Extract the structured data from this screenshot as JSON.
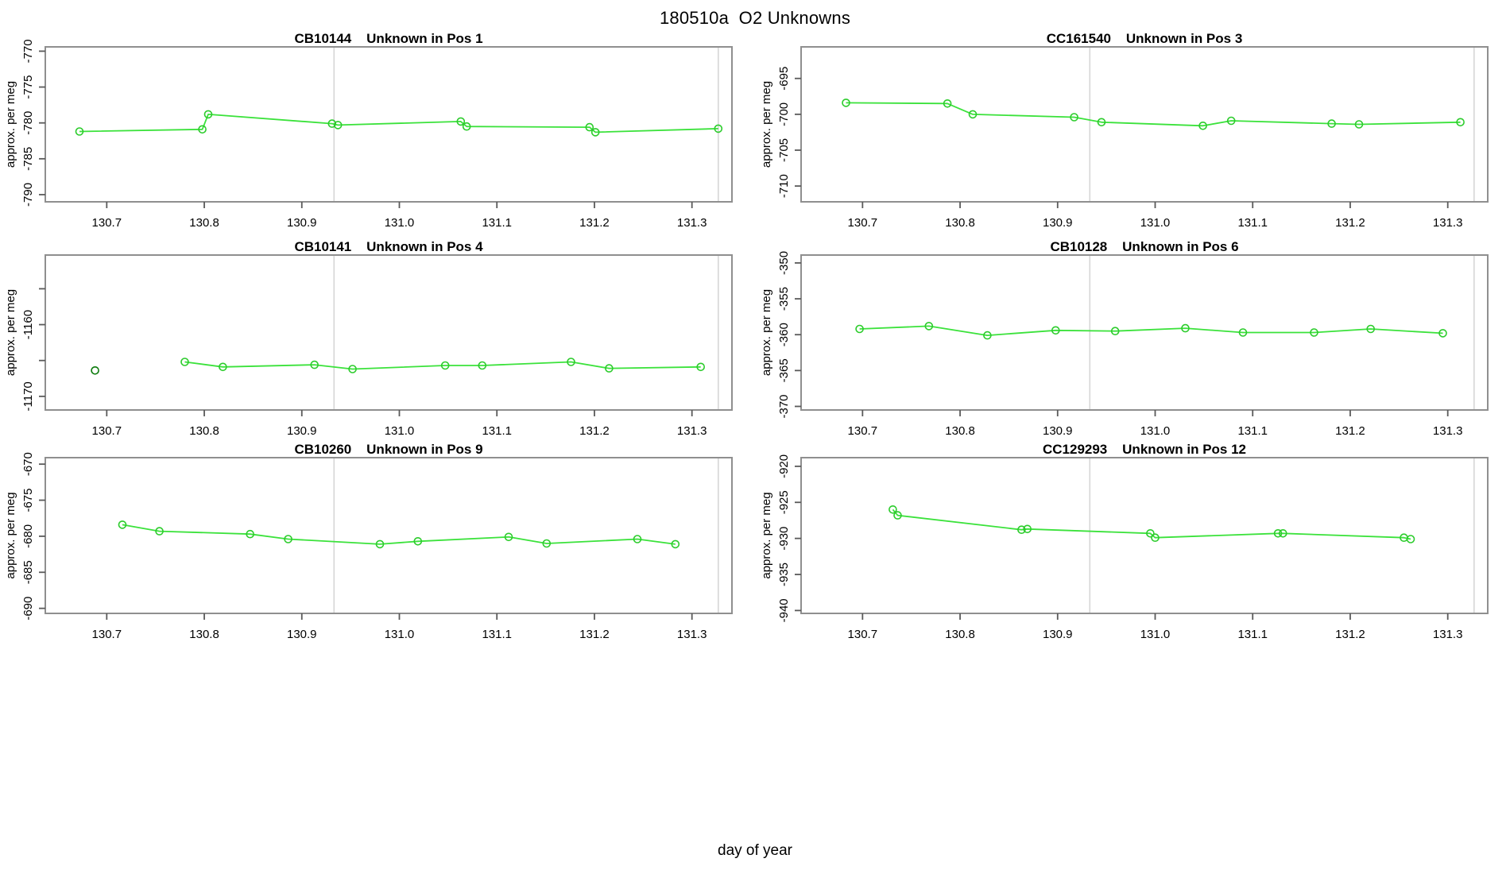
{
  "figure": {
    "title": "180510a  O2 Unknowns",
    "xlabel": "day of year",
    "ylabel": "approx. per meg"
  },
  "style": {
    "series_color": "#3be23b",
    "marker_color": "#2ccc2c",
    "dark_marker_color": "#0b7a0b",
    "vline_color": "#d6d6d6",
    "frame_color": "#8f8f8f",
    "tick_color": "#5a5a5a",
    "text_color": "#000000",
    "background": "#ffffff"
  },
  "axes": {
    "xlim": [
      130.637,
      131.341
    ],
    "x_ticks": [
      130.7,
      130.8,
      130.9,
      131.0,
      131.1,
      131.2,
      131.3
    ],
    "x_tick_labels": [
      "130.7",
      "130.8",
      "130.9",
      "131.0",
      "131.1",
      "131.2",
      "131.3"
    ],
    "vlines": [
      130.933,
      131.327
    ]
  },
  "chart_data": [
    {
      "type": "line",
      "sample_id": "CB10144",
      "position": "Pos 1",
      "title": "CB10144    Unknown in Pos 1",
      "grid": {
        "row": 0,
        "col": 0
      },
      "ylabel": "approx. per meg",
      "ylim": [
        -791.0,
        -769.4
      ],
      "y_ticks": [
        {
          "v": -770,
          "label": "-770"
        },
        {
          "v": -775,
          "label": "-775"
        },
        {
          "v": -780,
          "label": "-780"
        },
        {
          "v": -785,
          "label": "-785"
        },
        {
          "v": -790,
          "label": "-790"
        }
      ],
      "x": [
        130.672,
        130.798,
        130.804,
        130.931,
        130.937,
        131.063,
        131.069,
        131.195,
        131.201,
        131.327
      ],
      "y": [
        -781.2,
        -780.9,
        -778.8,
        -780.1,
        -780.3,
        -779.8,
        -780.5,
        -780.6,
        -781.3,
        -780.8
      ],
      "line_start_index": 0,
      "dark_point_indices": []
    },
    {
      "type": "line",
      "sample_id": "CC161540",
      "position": "Pos 3",
      "title": "CC161540    Unknown in Pos 3",
      "grid": {
        "row": 0,
        "col": 1
      },
      "ylabel": "approx. per meg",
      "ylim": [
        -712.2,
        -690.6
      ],
      "y_ticks": [
        {
          "v": -695,
          "label": "-695"
        },
        {
          "v": -700,
          "label": "-700"
        },
        {
          "v": -705,
          "label": "-705"
        },
        {
          "v": -710,
          "label": "-710"
        }
      ],
      "x": [
        130.683,
        130.787,
        130.813,
        130.917,
        130.945,
        131.049,
        131.078,
        131.181,
        131.209,
        131.313
      ],
      "y": [
        -698.4,
        -698.5,
        -700.0,
        -700.4,
        -701.1,
        -701.6,
        -700.9,
        -701.3,
        -701.4,
        -701.1
      ],
      "line_start_index": 0,
      "dark_point_indices": []
    },
    {
      "type": "line",
      "sample_id": "CB10141",
      "position": "Pos 4",
      "title": "CB10141    Unknown in Pos 4",
      "grid": {
        "row": 1,
        "col": 0
      },
      "ylabel": "approx. per meg",
      "ylim": [
        -1171.9,
        -1150.3
      ],
      "y_ticks": [
        {
          "v": -1155,
          "label": ""
        },
        {
          "v": -1160,
          "label": "-1160"
        },
        {
          "v": -1165,
          "label": ""
        },
        {
          "v": -1170,
          "label": "-1170"
        }
      ],
      "x": [
        130.688,
        130.78,
        130.819,
        130.913,
        130.952,
        131.047,
        131.085,
        131.176,
        131.215,
        131.309
      ],
      "y": [
        -1166.4,
        -1165.2,
        -1165.9,
        -1165.6,
        -1166.2,
        -1165.7,
        -1165.7,
        -1165.2,
        -1166.1,
        -1165.9
      ],
      "line_start_index": 1,
      "dark_point_indices": [
        0
      ]
    },
    {
      "type": "line",
      "sample_id": "CB10128",
      "position": "Pos 6",
      "title": "CB10128    Unknown in Pos 6",
      "grid": {
        "row": 1,
        "col": 1
      },
      "ylabel": "approx. per meg",
      "ylim": [
        -370.5,
        -348.9
      ],
      "y_ticks": [
        {
          "v": -350,
          "label": "-350"
        },
        {
          "v": -355,
          "label": "-355"
        },
        {
          "v": -360,
          "label": "-360"
        },
        {
          "v": -365,
          "label": "-365"
        },
        {
          "v": -370,
          "label": "-370"
        }
      ],
      "x": [
        130.697,
        130.768,
        130.828,
        130.898,
        130.959,
        131.031,
        131.09,
        131.163,
        131.221,
        131.295
      ],
      "y": [
        -359.2,
        -358.8,
        -360.1,
        -359.4,
        -359.5,
        -359.1,
        -359.7,
        -359.7,
        -359.2,
        -359.8
      ],
      "line_start_index": 0,
      "dark_point_indices": []
    },
    {
      "type": "line",
      "sample_id": "CB10260",
      "position": "Pos 9",
      "title": "CB10260    Unknown in Pos 9",
      "grid": {
        "row": 2,
        "col": 0
      },
      "ylabel": "approx. per meg",
      "ylim": [
        -690.7,
        -669.1
      ],
      "y_ticks": [
        {
          "v": -670,
          "label": "-670"
        },
        {
          "v": -675,
          "label": "-675"
        },
        {
          "v": -680,
          "label": "-680"
        },
        {
          "v": -685,
          "label": "-685"
        },
        {
          "v": -690,
          "label": "-690"
        }
      ],
      "x": [
        130.716,
        130.754,
        130.847,
        130.886,
        130.98,
        131.019,
        131.112,
        131.151,
        131.244,
        131.283
      ],
      "y": [
        -678.4,
        -679.3,
        -679.7,
        -680.4,
        -681.1,
        -680.7,
        -680.1,
        -681.0,
        -680.4,
        -681.1
      ],
      "line_start_index": 0,
      "dark_point_indices": []
    },
    {
      "type": "line",
      "sample_id": "CC129293",
      "position": "Pos 12",
      "title": "CC129293    Unknown in Pos 12",
      "grid": {
        "row": 2,
        "col": 1
      },
      "ylabel": "approx. per meg",
      "ylim": [
        -940.4,
        -918.8
      ],
      "y_ticks": [
        {
          "v": -920,
          "label": "-920"
        },
        {
          "v": -925,
          "label": "-925"
        },
        {
          "v": -930,
          "label": "-930"
        },
        {
          "v": -935,
          "label": "-935"
        },
        {
          "v": -940,
          "label": "-940"
        }
      ],
      "x": [
        130.731,
        130.736,
        130.863,
        130.869,
        130.995,
        131.0,
        131.126,
        131.131,
        131.255,
        131.262
      ],
      "y": [
        -926.0,
        -926.8,
        -928.8,
        -928.7,
        -929.3,
        -929.9,
        -929.3,
        -929.3,
        -929.9,
        -930.1
      ],
      "line_start_index": 0,
      "dark_point_indices": []
    }
  ]
}
